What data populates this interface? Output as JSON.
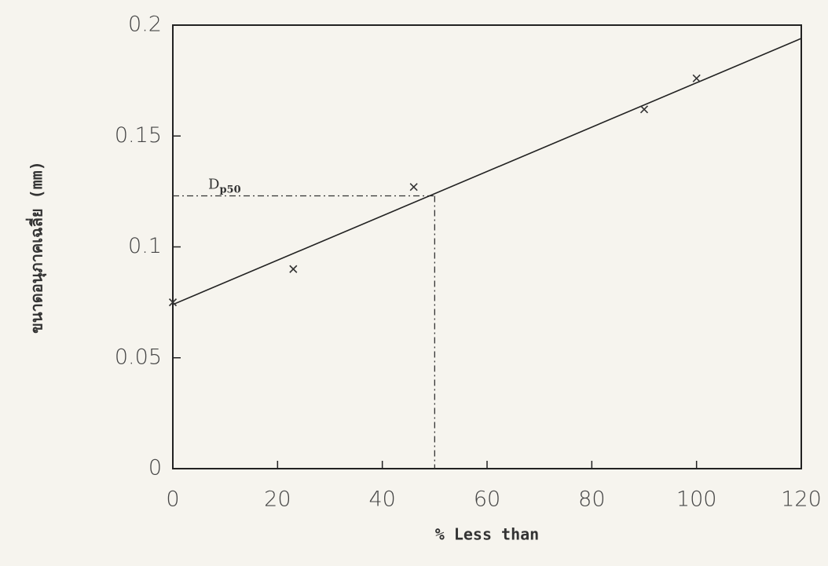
{
  "chart_data": {
    "type": "scatter",
    "x_label": "% Less than",
    "y_label": "ขนาดอนุภาคเฉลี่ย (mm)",
    "x": [
      0,
      23,
      46,
      90,
      100
    ],
    "values": [
      0.075,
      0.09,
      0.127,
      0.162,
      0.176
    ],
    "marker_color": "#333333",
    "fit_line": {
      "x": [
        0,
        120
      ],
      "values": [
        0.074,
        0.194
      ],
      "color": "#222222"
    },
    "guide": {
      "x": 50,
      "y": 0.123,
      "label": "D",
      "label_sub": "p50"
    },
    "xlim": [
      0,
      120
    ],
    "xticks": [
      0,
      20,
      40,
      60,
      80,
      100,
      120
    ],
    "ylim": [
      0,
      0.2
    ],
    "yticks": [
      0,
      0.05,
      0.1,
      0.15,
      0.2
    ],
    "grid": false
  }
}
